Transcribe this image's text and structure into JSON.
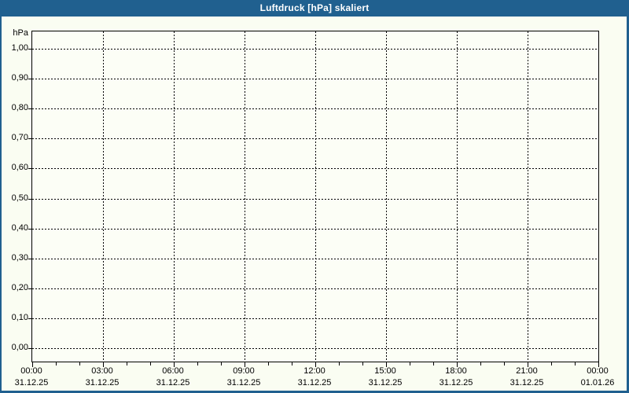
{
  "window": {
    "title": "Luftdruck [hPa] skaliert"
  },
  "colors": {
    "titlebar_bg": "#20608f",
    "window_border": "#20608f",
    "title_text": "#ffffff",
    "content_bg": "#fafdf2",
    "plot_bg": "#fcfef6",
    "grid": "#000000",
    "axis_text": "#000000"
  },
  "chart_data": {
    "type": "line",
    "title": "Luftdruck [hPa] skaliert",
    "xlabel": "",
    "ylabel": "hPa",
    "ylim": [
      0.0,
      1.0
    ],
    "ytick_step": 0.1,
    "yticks": [
      {
        "value": 1.0,
        "label": "1,00"
      },
      {
        "value": 0.9,
        "label": "0,90"
      },
      {
        "value": 0.8,
        "label": "0,80"
      },
      {
        "value": 0.7,
        "label": "0,70"
      },
      {
        "value": 0.6,
        "label": "0,60"
      },
      {
        "value": 0.5,
        "label": "0,50"
      },
      {
        "value": 0.4,
        "label": "0,40"
      },
      {
        "value": 0.3,
        "label": "0,30"
      },
      {
        "value": 0.2,
        "label": "0,20"
      },
      {
        "value": 0.1,
        "label": "0,10"
      },
      {
        "value": 0.0,
        "label": "0,00"
      }
    ],
    "x_axis": {
      "range_hours": [
        0,
        24
      ],
      "minor_tick_hours": 1,
      "major_tick_hours": 3,
      "ticks": [
        {
          "hour": 0,
          "time": "00:00",
          "date": "31.12.25"
        },
        {
          "hour": 3,
          "time": "03:00",
          "date": "31.12.25"
        },
        {
          "hour": 6,
          "time": "06:00",
          "date": "31.12.25"
        },
        {
          "hour": 9,
          "time": "09:00",
          "date": "31.12.25"
        },
        {
          "hour": 12,
          "time": "12:00",
          "date": "31.12.25"
        },
        {
          "hour": 15,
          "time": "15:00",
          "date": "31.12.25"
        },
        {
          "hour": 18,
          "time": "18:00",
          "date": "31.12.25"
        },
        {
          "hour": 21,
          "time": "21:00",
          "date": "31.12.25"
        },
        {
          "hour": 24,
          "time": "00:00",
          "date": "01.01.26"
        }
      ]
    },
    "grid": true,
    "grid_style": "dashed",
    "legend": "none",
    "series": []
  }
}
